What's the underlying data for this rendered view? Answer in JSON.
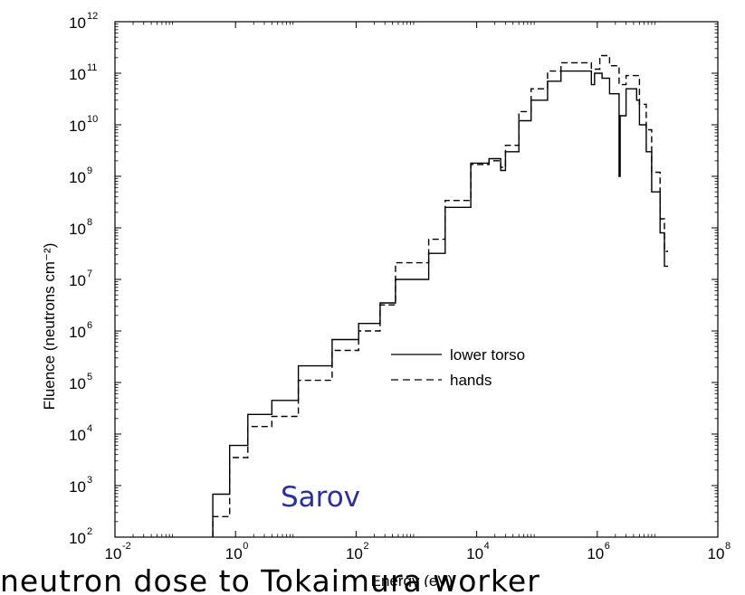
{
  "chart_data": {
    "type": "line",
    "xlabel": "Energy (eV)",
    "ylabel": "Fluence (neutrons cm⁻²)",
    "x_scale": "log",
    "y_scale": "log",
    "xlim": [
      0.01,
      100000000
    ],
    "ylim": [
      100,
      1000000000000
    ],
    "x_ticks": [
      {
        "base": "10",
        "exp": "-2",
        "value": 0.01
      },
      {
        "base": "10",
        "exp": "0",
        "value": 1
      },
      {
        "base": "10",
        "exp": "2",
        "value": 100
      },
      {
        "base": "10",
        "exp": "4",
        "value": 10000
      },
      {
        "base": "10",
        "exp": "6",
        "value": 1000000
      },
      {
        "base": "10",
        "exp": "8",
        "value": 100000000
      }
    ],
    "y_ticks": [
      {
        "base": "10",
        "exp": "2",
        "value": 100
      },
      {
        "base": "10",
        "exp": "3",
        "value": 1000
      },
      {
        "base": "10",
        "exp": "4",
        "value": 10000
      },
      {
        "base": "10",
        "exp": "5",
        "value": 100000
      },
      {
        "base": "10",
        "exp": "6",
        "value": 1000000
      },
      {
        "base": "10",
        "exp": "7",
        "value": 10000000
      },
      {
        "base": "10",
        "exp": "8",
        "value": 100000000
      },
      {
        "base": "10",
        "exp": "9",
        "value": 1000000000
      },
      {
        "base": "10",
        "exp": "10",
        "value": 10000000000
      },
      {
        "base": "10",
        "exp": "11",
        "value": 100000000000
      },
      {
        "base": "10",
        "exp": "12",
        "value": 1000000000000
      }
    ],
    "grid": false,
    "legend_position": "center-right",
    "annotation": "Sarov",
    "series": [
      {
        "name": "lower torso",
        "style": "solid",
        "color": "#000000",
        "points": [
          [
            0.42,
            100
          ],
          [
            0.42,
            680
          ],
          [
            0.8,
            680
          ],
          [
            0.8,
            6000
          ],
          [
            1.6,
            6000
          ],
          [
            1.6,
            24000
          ],
          [
            4.0,
            24000
          ],
          [
            4.0,
            45000
          ],
          [
            11,
            45000
          ],
          [
            11,
            210000
          ],
          [
            40,
            210000
          ],
          [
            40,
            680000
          ],
          [
            110,
            680000
          ],
          [
            110,
            1400000
          ],
          [
            250,
            1400000
          ],
          [
            250,
            3500000
          ],
          [
            450,
            3500000
          ],
          [
            450,
            10000000
          ],
          [
            1600,
            10000000
          ],
          [
            1600,
            32000000
          ],
          [
            3000,
            32000000
          ],
          [
            3000,
            250000000
          ],
          [
            8000,
            250000000
          ],
          [
            8000,
            1800000000
          ],
          [
            16000,
            1800000000
          ],
          [
            16000,
            2200000000
          ],
          [
            25000,
            2200000000
          ],
          [
            25000,
            1300000000
          ],
          [
            30000,
            1300000000
          ],
          [
            30000,
            3000000000
          ],
          [
            50000,
            3000000000
          ],
          [
            50000,
            12000000000
          ],
          [
            80000,
            12000000000
          ],
          [
            80000,
            30000000000
          ],
          [
            150000,
            30000000000
          ],
          [
            150000,
            70000000000
          ],
          [
            250000,
            70000000000
          ],
          [
            250000,
            110000000000
          ],
          [
            800000,
            110000000000
          ],
          [
            800000,
            60000000000
          ],
          [
            900000,
            60000000000
          ],
          [
            900000,
            100000000000
          ],
          [
            1200000,
            100000000000
          ],
          [
            1200000,
            80000000000
          ],
          [
            1600000,
            80000000000
          ],
          [
            1600000,
            40000000000
          ],
          [
            2300000,
            40000000000
          ],
          [
            2300000,
            1000000000
          ],
          [
            2400000,
            1000000000
          ],
          [
            2400000,
            15000000000
          ],
          [
            3000000,
            15000000000
          ],
          [
            3000000,
            50000000000
          ],
          [
            4500000,
            50000000000
          ],
          [
            4500000,
            30000000000
          ],
          [
            5000000,
            30000000000
          ],
          [
            5000000,
            10000000000
          ],
          [
            6500000,
            10000000000
          ],
          [
            6500000,
            3000000000
          ],
          [
            8000000,
            3000000000
          ],
          [
            8000000,
            500000000
          ],
          [
            11000000,
            500000000
          ],
          [
            11000000,
            80000000
          ],
          [
            13000000,
            80000000
          ],
          [
            13000000,
            18000000
          ],
          [
            15000000,
            18000000
          ]
        ]
      },
      {
        "name": "hands",
        "style": "dashed",
        "color": "#000000",
        "points": [
          [
            0.42,
            100
          ],
          [
            0.42,
            250
          ],
          [
            0.8,
            250
          ],
          [
            0.8,
            3500
          ],
          [
            1.6,
            3500
          ],
          [
            1.6,
            14000
          ],
          [
            4.0,
            14000
          ],
          [
            4.0,
            22000
          ],
          [
            11,
            22000
          ],
          [
            11,
            110000
          ],
          [
            40,
            110000
          ],
          [
            40,
            420000
          ],
          [
            110,
            420000
          ],
          [
            110,
            1000000
          ],
          [
            250,
            1000000
          ],
          [
            250,
            3200000
          ],
          [
            450,
            3200000
          ],
          [
            450,
            21000000
          ],
          [
            1600,
            21000000
          ],
          [
            1600,
            60000000
          ],
          [
            3000,
            60000000
          ],
          [
            3000,
            340000000
          ],
          [
            8000,
            340000000
          ],
          [
            8000,
            1700000000
          ],
          [
            16000,
            1700000000
          ],
          [
            16000,
            2000000000
          ],
          [
            25000,
            2000000000
          ],
          [
            25000,
            1500000000
          ],
          [
            30000,
            1500000000
          ],
          [
            30000,
            4000000000
          ],
          [
            50000,
            4000000000
          ],
          [
            50000,
            18000000000
          ],
          [
            80000,
            18000000000
          ],
          [
            80000,
            50000000000
          ],
          [
            150000,
            50000000000
          ],
          [
            150000,
            110000000000
          ],
          [
            250000,
            110000000000
          ],
          [
            250000,
            160000000000
          ],
          [
            800000,
            160000000000
          ],
          [
            800000,
            120000000000
          ],
          [
            1100000,
            120000000000
          ],
          [
            1100000,
            220000000000
          ],
          [
            1600000,
            220000000000
          ],
          [
            1600000,
            140000000000
          ],
          [
            2300000,
            140000000000
          ],
          [
            2300000,
            60000000000
          ],
          [
            3000000,
            60000000000
          ],
          [
            3000000,
            90000000000
          ],
          [
            5000000,
            90000000000
          ],
          [
            5000000,
            25000000000
          ],
          [
            6500000,
            25000000000
          ],
          [
            6500000,
            8000000000
          ],
          [
            8000000,
            8000000000
          ],
          [
            8000000,
            1200000000
          ],
          [
            11000000,
            1200000000
          ],
          [
            11000000,
            150000000
          ],
          [
            13000000,
            150000000
          ],
          [
            13000000,
            35000000
          ],
          [
            15000000,
            35000000
          ]
        ]
      }
    ]
  },
  "caption": {
    "text": "neutron dose to Tokaimura worker"
  }
}
